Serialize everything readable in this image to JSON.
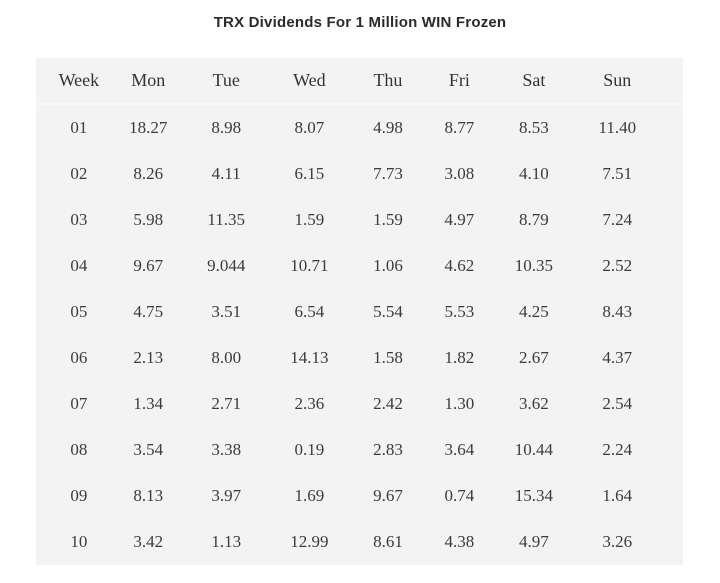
{
  "title": "TRX Dividends For 1 Million WIN Frozen",
  "colors": {
    "page_bg": "#ffffff",
    "table_bg": "#f3f3f3",
    "header_divider": "#fafafa",
    "title_text": "#2b2b2b",
    "cell_text": "#3b3b3b"
  },
  "chart_data": {
    "type": "table",
    "title": "TRX Dividends For 1 Million WIN Frozen",
    "columns": [
      "Week",
      "Mon",
      "Tue",
      "Wed",
      "Thu",
      "Fri",
      "Sat",
      "Sun"
    ],
    "rows": [
      [
        "01",
        "18.27",
        "8.98",
        "8.07",
        "4.98",
        "8.77",
        "8.53",
        "11.40"
      ],
      [
        "02",
        "8.26",
        "4.11",
        "6.15",
        "7.73",
        "3.08",
        "4.10",
        "7.51"
      ],
      [
        "03",
        "5.98",
        "11.35",
        "1.59",
        "1.59",
        "4.97",
        "8.79",
        "7.24"
      ],
      [
        "04",
        "9.67",
        "9.044",
        "10.71",
        "1.06",
        "4.62",
        "10.35",
        "2.52"
      ],
      [
        "05",
        "4.75",
        "3.51",
        "6.54",
        "5.54",
        "5.53",
        "4.25",
        "8.43"
      ],
      [
        "06",
        "2.13",
        "8.00",
        "14.13",
        "1.58",
        "1.82",
        "2.67",
        "4.37"
      ],
      [
        "07",
        "1.34",
        "2.71",
        "2.36",
        "2.42",
        "1.30",
        "3.62",
        "2.54"
      ],
      [
        "08",
        "3.54",
        "3.38",
        "0.19",
        "2.83",
        "3.64",
        "10.44",
        "2.24"
      ],
      [
        "09",
        "8.13",
        "3.97",
        "1.69",
        "9.67",
        "0.74",
        "15.34",
        "1.64"
      ],
      [
        "10",
        "3.42",
        "1.13",
        "12.99",
        "8.61",
        "4.38",
        "4.97",
        "3.26"
      ]
    ]
  }
}
